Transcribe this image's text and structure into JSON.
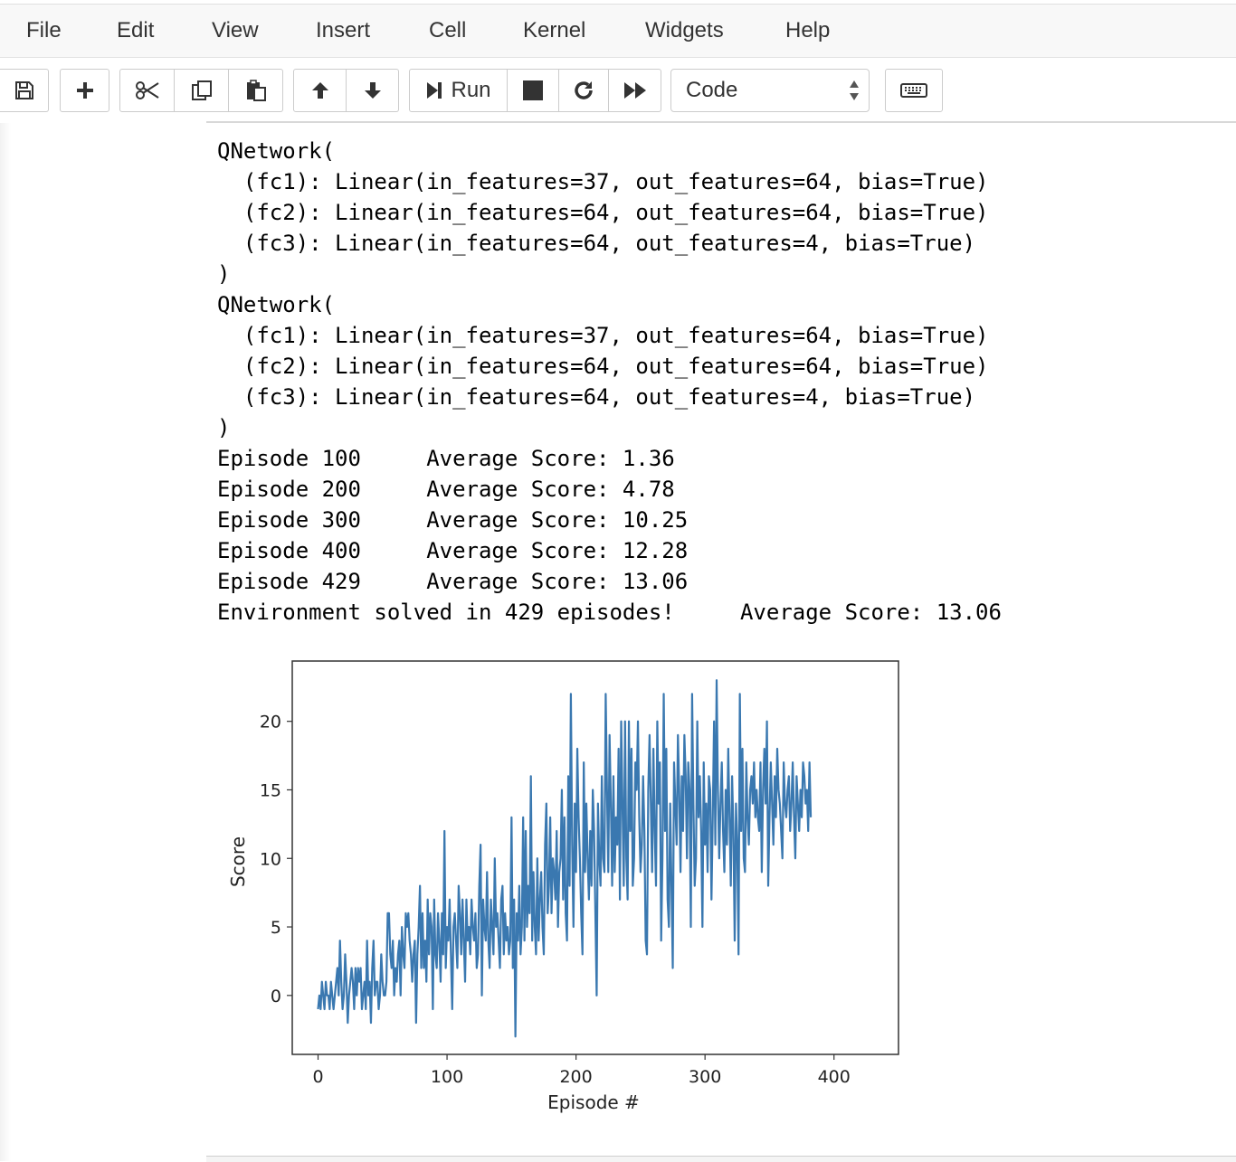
{
  "menu": {
    "items": [
      {
        "label": "File"
      },
      {
        "label": "Edit"
      },
      {
        "label": "View"
      },
      {
        "label": "Insert"
      },
      {
        "label": "Cell"
      },
      {
        "label": "Kernel"
      },
      {
        "label": "Widgets"
      },
      {
        "label": "Help"
      }
    ]
  },
  "toolbar": {
    "icons": [
      "save-icon",
      "plus-icon",
      "scissors-icon",
      "copy-icon",
      "paste-icon",
      "arrow-up-icon",
      "arrow-down-icon",
      "step-forward-icon",
      "stop-icon",
      "restart-icon",
      "fast-forward-icon",
      "keyboard-icon"
    ],
    "run_label": "Run",
    "cell_type": "Code"
  },
  "output": {
    "text": "QNetwork(\n  (fc1): Linear(in_features=37, out_features=64, bias=True)\n  (fc2): Linear(in_features=64, out_features=64, bias=True)\n  (fc3): Linear(in_features=64, out_features=4, bias=True)\n)\nQNetwork(\n  (fc1): Linear(in_features=37, out_features=64, bias=True)\n  (fc2): Linear(in_features=64, out_features=64, bias=True)\n  (fc3): Linear(in_features=64, out_features=4, bias=True)\n)\nEpisode 100\tAverage Score: 1.36\nEpisode 200\tAverage Score: 4.78\nEpisode 300\tAverage Score: 10.25\nEpisode 400\tAverage Score: 12.28\nEpisode 429\tAverage Score: 13.06\nEnvironment solved in 429 episodes!\tAverage Score: 13.06"
  },
  "chart_data": {
    "type": "line",
    "xlabel": "Episode #",
    "ylabel": "Score",
    "xlim": [
      -20,
      450
    ],
    "ylim": [
      -4.3,
      24.4
    ],
    "xticks": [
      0,
      100,
      200,
      300,
      400
    ],
    "yticks": [
      0,
      5,
      10,
      15,
      20
    ],
    "grid": false,
    "line_color": "#3a78b0",
    "series": [
      {
        "x_start": 0,
        "values": [
          -1,
          0,
          -1,
          1,
          0,
          -1,
          1,
          0,
          0,
          -1,
          1,
          0,
          -1,
          0,
          1,
          2,
          0,
          4,
          1,
          -1,
          0,
          3,
          1,
          -2,
          0,
          1,
          2,
          1,
          -1,
          2,
          0,
          2,
          1,
          2,
          -1,
          0,
          1,
          -1,
          4,
          0,
          1,
          -2,
          2,
          4,
          0,
          1,
          1,
          -1,
          0,
          3,
          1,
          0,
          0,
          1,
          6,
          6,
          3,
          2,
          4,
          0,
          2,
          1,
          3,
          4,
          0,
          5,
          3,
          2,
          6,
          5,
          6,
          4,
          3,
          1,
          3,
          4,
          -2,
          3,
          5,
          8,
          2,
          6,
          2,
          4,
          1,
          7,
          3,
          6,
          5,
          -1,
          7,
          3,
          2,
          6,
          4,
          1,
          6,
          3,
          12,
          2,
          5,
          4,
          7,
          3,
          -1,
          5,
          6,
          4,
          2,
          8,
          6,
          3,
          7,
          4,
          1,
          7,
          4,
          5,
          3,
          7,
          5,
          4,
          6,
          2,
          3,
          8,
          11,
          0,
          7,
          5,
          4,
          9,
          4,
          2,
          7,
          5,
          3,
          10,
          5,
          6,
          4,
          2,
          7,
          8,
          3,
          6,
          4,
          5,
          3,
          4,
          13,
          2,
          7,
          -3,
          6,
          4,
          8,
          3,
          5,
          13,
          4,
          12,
          5,
          8,
          6,
          16,
          4,
          9,
          5,
          3,
          10,
          4,
          7,
          9,
          5,
          3,
          11,
          14,
          6,
          8,
          13,
          6,
          10,
          9,
          7,
          12,
          5,
          9,
          10,
          15,
          7,
          13,
          6,
          4,
          16,
          8,
          22,
          11,
          5,
          14,
          9,
          18,
          13,
          10,
          6,
          3,
          17,
          9,
          14,
          10,
          7,
          12,
          8,
          15,
          12,
          6,
          0,
          14,
          10,
          8,
          16,
          10,
          9,
          22,
          15,
          9,
          19,
          14,
          8,
          16,
          9,
          13,
          11,
          18,
          7,
          20,
          14,
          8,
          20,
          10,
          7,
          20,
          12,
          18,
          8,
          10,
          17,
          15,
          20,
          13,
          9,
          11,
          16,
          12,
          4,
          3,
          15,
          19,
          14,
          9,
          18,
          12,
          8,
          20,
          14,
          17,
          4,
          10,
          22,
          12,
          18,
          7,
          5,
          14,
          8,
          2,
          17,
          14,
          11,
          19,
          15,
          9,
          16,
          12,
          19,
          16,
          10,
          17,
          15,
          5,
          22,
          14,
          8,
          10,
          20,
          13,
          16,
          12,
          5,
          17,
          11,
          14,
          9,
          16,
          15,
          7,
          13,
          20,
          11,
          23,
          15,
          10,
          14,
          17,
          12,
          9,
          15,
          11,
          18,
          13,
          8,
          16,
          12,
          4,
          14,
          11,
          3,
          22,
          12,
          18,
          10,
          9,
          17,
          13,
          11,
          15,
          16,
          14,
          17,
          13,
          15,
          13,
          12,
          17,
          9,
          15,
          18,
          14,
          20,
          8,
          13,
          17,
          14,
          11,
          16,
          13,
          18,
          15,
          14,
          12,
          10,
          17,
          14,
          13,
          15,
          16,
          12,
          14,
          17,
          13,
          10,
          16,
          14,
          12,
          15,
          13,
          17,
          16,
          14,
          15,
          12,
          17,
          13
        ]
      }
    ]
  }
}
